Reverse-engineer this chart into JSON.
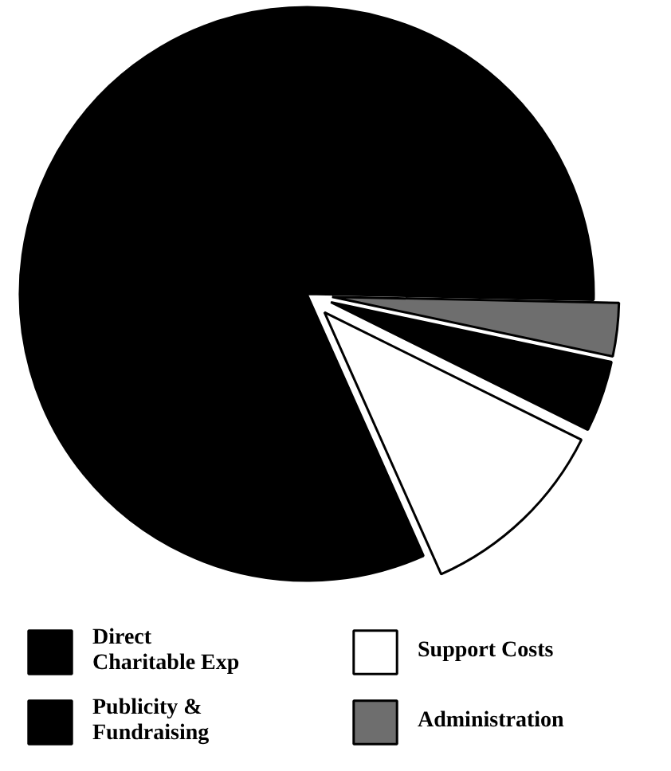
{
  "chart_data": {
    "type": "pie",
    "categories": [
      "Direct Charitable Exp",
      "Administration",
      "Publicity & Fundraising",
      "Support Costs"
    ],
    "values": [
      82,
      3,
      4,
      11
    ],
    "colors": [
      "#000000",
      "#6e6e6e",
      "#000000",
      "#ffffff"
    ],
    "legend": "bottom"
  }
}
